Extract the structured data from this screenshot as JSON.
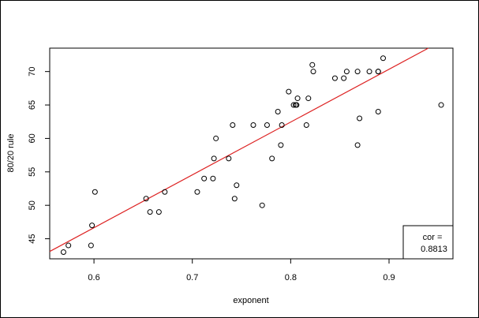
{
  "chart_data": {
    "type": "scatter",
    "title": "",
    "xlabel": "exponent",
    "ylabel": "80/20 rule",
    "xlim": [
      0.555,
      0.965
    ],
    "ylim": [
      42,
      73.5
    ],
    "x_ticks": [
      0.6,
      0.7,
      0.8,
      0.9
    ],
    "x_tick_labels": [
      "0.6",
      "0.7",
      "0.8",
      "0.9"
    ],
    "y_ticks": [
      45,
      50,
      55,
      60,
      65,
      70
    ],
    "y_tick_labels": [
      "45",
      "50",
      "55",
      "60",
      "65",
      "70"
    ],
    "grid": false,
    "legend_placement": "bottom-right",
    "annotation": {
      "label": "cor =",
      "value": "0.8813"
    },
    "colors": {
      "points": "#000000",
      "fit_line": "#dd2222"
    },
    "fit_line": {
      "x": [
        0.555,
        0.94
      ],
      "y": [
        43.1,
        73.5
      ]
    },
    "series": [
      {
        "points": [
          [
            0.569,
            43
          ],
          [
            0.574,
            44
          ],
          [
            0.597,
            44
          ],
          [
            0.598,
            47
          ],
          [
            0.601,
            52
          ],
          [
            0.653,
            51
          ],
          [
            0.657,
            49
          ],
          [
            0.666,
            49
          ],
          [
            0.672,
            52
          ],
          [
            0.705,
            52
          ],
          [
            0.712,
            54
          ],
          [
            0.721,
            54
          ],
          [
            0.722,
            57
          ],
          [
            0.724,
            60
          ],
          [
            0.737,
            57
          ],
          [
            0.741,
            62
          ],
          [
            0.743,
            51
          ],
          [
            0.745,
            53
          ],
          [
            0.762,
            62
          ],
          [
            0.771,
            50
          ],
          [
            0.776,
            62
          ],
          [
            0.781,
            57
          ],
          [
            0.787,
            64
          ],
          [
            0.79,
            59
          ],
          [
            0.791,
            62
          ],
          [
            0.798,
            67
          ],
          [
            0.803,
            65
          ],
          [
            0.805,
            65
          ],
          [
            0.806,
            65
          ],
          [
            0.807,
            66
          ],
          [
            0.816,
            62
          ],
          [
            0.818,
            66
          ],
          [
            0.822,
            71
          ],
          [
            0.823,
            70
          ],
          [
            0.845,
            69
          ],
          [
            0.854,
            69
          ],
          [
            0.857,
            70
          ],
          [
            0.868,
            70
          ],
          [
            0.868,
            59
          ],
          [
            0.87,
            63
          ],
          [
            0.88,
            70
          ],
          [
            0.889,
            70
          ],
          [
            0.889,
            70
          ],
          [
            0.889,
            64
          ],
          [
            0.894,
            72
          ],
          [
            0.953,
            65
          ]
        ]
      }
    ]
  }
}
